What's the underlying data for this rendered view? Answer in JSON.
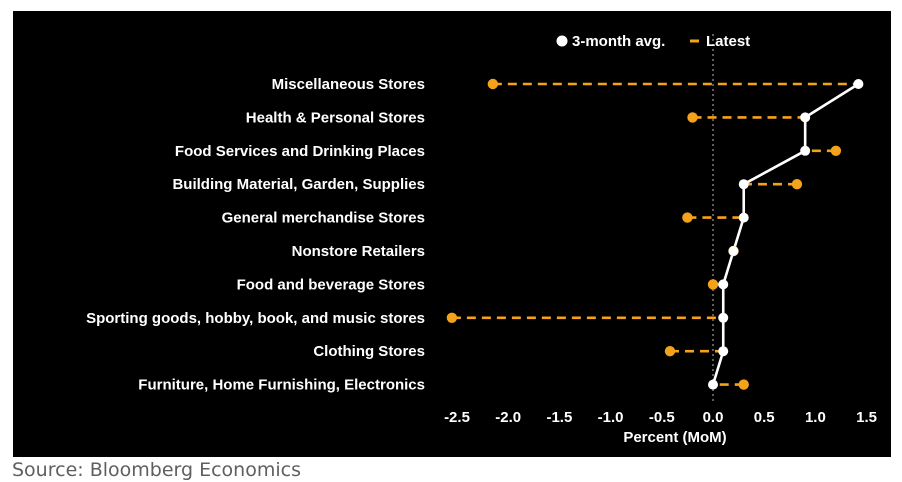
{
  "source": "Source: Bloomberg Economics",
  "colors": {
    "background": "#000000",
    "avg": "#ffffff",
    "latest": "#f5a21b",
    "zero_line": "#bbbbbb"
  },
  "chart_data": {
    "type": "dot-plot",
    "title": "",
    "xlabel": "Percent (MoM)",
    "ylabel": "",
    "xlim": [
      -2.7,
      1.6
    ],
    "xticks": [
      -2.5,
      -2.0,
      -1.5,
      -1.0,
      -0.5,
      0.0,
      0.5,
      1.0,
      1.5
    ],
    "xtick_labels": [
      "-2.5",
      "-2.0",
      "-1.5",
      "-1.0",
      "-0.5",
      "0.0",
      "0.5",
      "1.0",
      "1.5"
    ],
    "legend_position": "top-right",
    "categories": [
      "Miscellaneous Stores",
      "Health & Personal Stores",
      "Food Services and Drinking Places",
      "Building Material, Garden, Supplies",
      "General merchandise Stores",
      "Nonstore Retailers",
      "Food and beverage Stores",
      "Sporting goods, hobby, book, and music stores",
      "Clothing Stores",
      "Furniture, Home Furnishing, Electronics"
    ],
    "series": [
      {
        "name": "3-month avg.",
        "values": [
          1.42,
          0.9,
          0.9,
          0.3,
          0.3,
          0.2,
          0.1,
          0.1,
          0.1,
          0.0
        ]
      },
      {
        "name": "Latest",
        "values": [
          -2.15,
          -0.2,
          1.2,
          0.82,
          -0.25,
          0.2,
          0.0,
          -2.55,
          -0.42,
          0.3
        ]
      }
    ]
  }
}
